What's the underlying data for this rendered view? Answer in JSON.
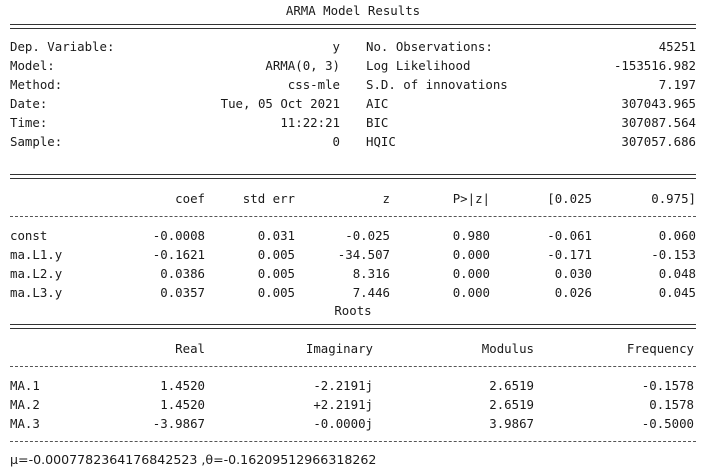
{
  "title": "ARMA Model Results",
  "header_left": [
    {
      "label": "Dep. Variable:",
      "value": "y"
    },
    {
      "label": "Model:",
      "value": "ARMA(0, 3)"
    },
    {
      "label": "Method:",
      "value": "css-mle"
    },
    {
      "label": "Date:",
      "value": "Tue, 05 Oct 2021"
    },
    {
      "label": "Time:",
      "value": "11:22:21"
    },
    {
      "label": "Sample:",
      "value": "0"
    }
  ],
  "header_right": [
    {
      "label": "No. Observations:",
      "value": "45251"
    },
    {
      "label": "Log Likelihood",
      "value": "-153516.982"
    },
    {
      "label": "S.D. of innovations",
      "value": "7.197"
    },
    {
      "label": "AIC",
      "value": "307043.965"
    },
    {
      "label": "BIC",
      "value": "307087.564"
    },
    {
      "label": "HQIC",
      "value": "307057.686"
    }
  ],
  "coef_table": {
    "columns": [
      "coef",
      "std err",
      "z",
      "P>|z|",
      "[0.025",
      "0.975]"
    ],
    "rows": [
      {
        "name": "const",
        "cells": [
          "-0.0008",
          "0.031",
          "-0.025",
          "0.980",
          "-0.061",
          "0.060"
        ]
      },
      {
        "name": "ma.L1.y",
        "cells": [
          "-0.1621",
          "0.005",
          "-34.507",
          "0.000",
          "-0.171",
          "-0.153"
        ]
      },
      {
        "name": "ma.L2.y",
        "cells": [
          "0.0386",
          "0.005",
          "8.316",
          "0.000",
          "0.030",
          "0.048"
        ]
      },
      {
        "name": "ma.L3.y",
        "cells": [
          "0.0357",
          "0.005",
          "7.446",
          "0.000",
          "0.026",
          "0.045"
        ]
      }
    ]
  },
  "roots_title": "Roots",
  "roots_table": {
    "columns": [
      "Real",
      "Imaginary",
      "Modulus",
      "Frequency"
    ],
    "rows": [
      {
        "name": "MA.1",
        "cells": [
          "1.4520",
          "-2.2191j",
          "2.6519",
          "-0.1578"
        ]
      },
      {
        "name": "MA.2",
        "cells": [
          "1.4520",
          "+2.2191j",
          "2.6519",
          "0.1578"
        ]
      },
      {
        "name": "MA.3",
        "cells": [
          "-3.9867",
          "-0.0000j",
          "3.9867",
          "-0.5000"
        ]
      }
    ]
  },
  "footer": "μ=-0.0007782364176842523 ,θ=-0.16209512966318262"
}
